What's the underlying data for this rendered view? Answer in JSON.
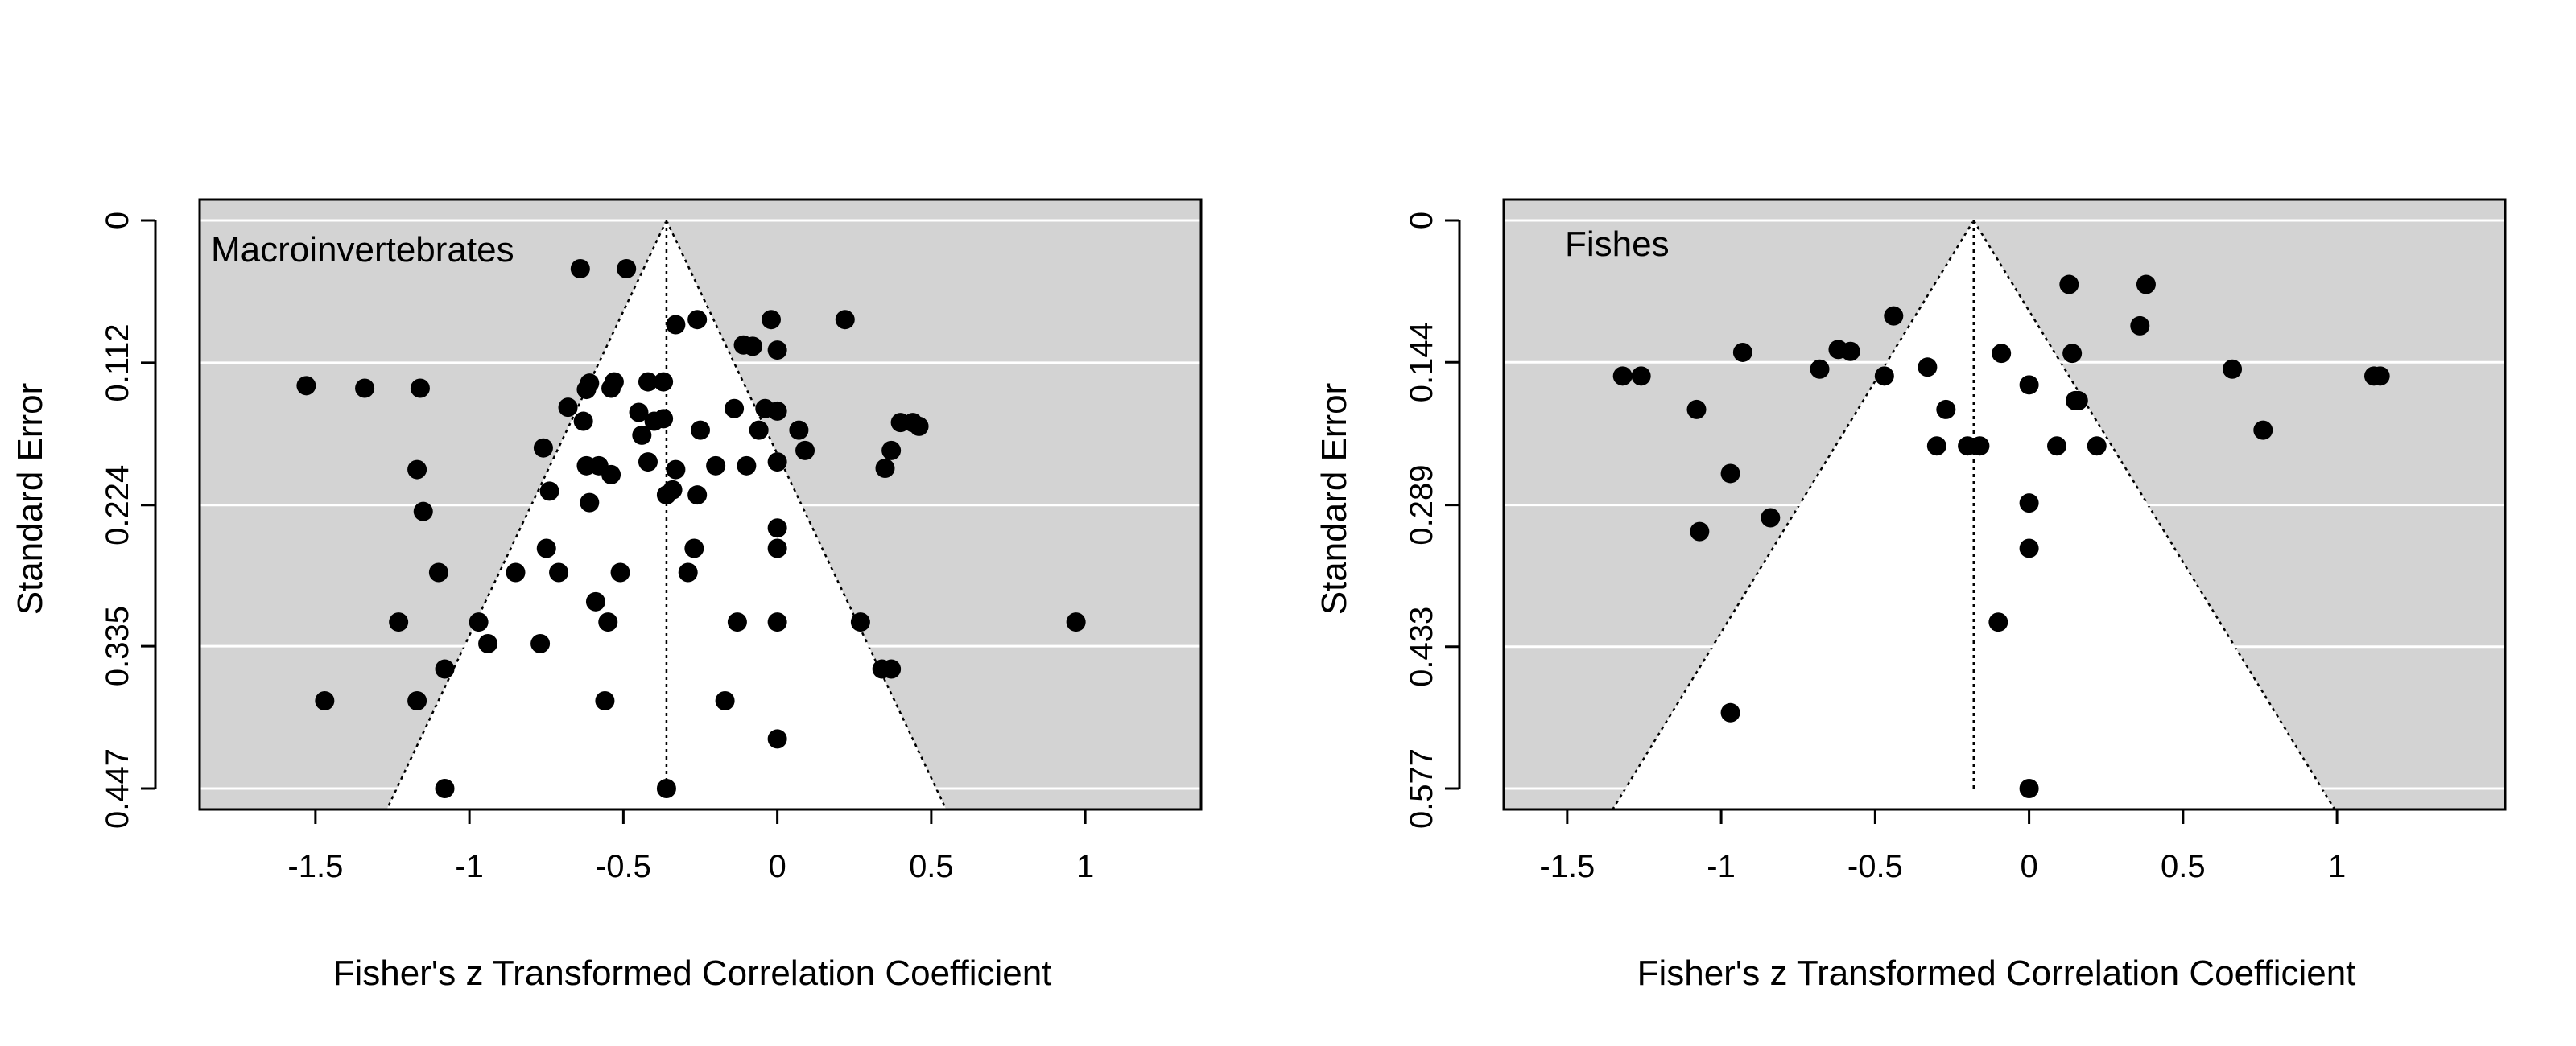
{
  "chart_data": [
    {
      "type": "scatter",
      "subtype": "funnel-plot",
      "panel_label": "Macroinvertebrates",
      "xlabel": "Fisher's z Transformed Correlation Coefficient",
      "ylabel": "Standard Error",
      "xlim": [
        -1.85,
        1.35
      ],
      "ylim": [
        0.447,
        0.0
      ],
      "y_axis_inverted": true,
      "x_ticks": [
        -1.5,
        -1,
        -0.5,
        0,
        0.5,
        1
      ],
      "x_tick_labels": [
        "-1.5",
        "-1",
        "-0.5",
        "0",
        "0.5",
        "1"
      ],
      "y_ticks": [
        0,
        0.112,
        0.224,
        0.335,
        0.447
      ],
      "y_tick_labels": [
        "0",
        "0.112",
        "0.224",
        "0.335",
        "0.447"
      ],
      "grid": "horizontal, white",
      "background_color": "#d3d3d3",
      "funnel_color": "#ffffff",
      "pooled_estimate": -0.36,
      "colors": {
        "points": "#000000",
        "funnel_lines": "#000000"
      },
      "points": [
        {
          "x": -0.64,
          "y": 0.038
        },
        {
          "x": -0.49,
          "y": 0.038
        },
        {
          "x": -0.02,
          "y": 0.078
        },
        {
          "x": 0.22,
          "y": 0.078
        },
        {
          "x": -0.26,
          "y": 0.078
        },
        {
          "x": -0.33,
          "y": 0.082
        },
        {
          "x": -0.11,
          "y": 0.098
        },
        {
          "x": -0.08,
          "y": 0.099
        },
        {
          "x": 0.0,
          "y": 0.102
        },
        {
          "x": -1.53,
          "y": 0.13
        },
        {
          "x": -1.34,
          "y": 0.132
        },
        {
          "x": -1.16,
          "y": 0.132
        },
        {
          "x": -0.61,
          "y": 0.128
        },
        {
          "x": -0.53,
          "y": 0.127
        },
        {
          "x": -0.42,
          "y": 0.127
        },
        {
          "x": -0.37,
          "y": 0.127
        },
        {
          "x": -0.62,
          "y": 0.133
        },
        {
          "x": -0.54,
          "y": 0.132
        },
        {
          "x": -0.68,
          "y": 0.147
        },
        {
          "x": -0.63,
          "y": 0.158
        },
        {
          "x": -0.45,
          "y": 0.151
        },
        {
          "x": -0.4,
          "y": 0.158
        },
        {
          "x": -0.37,
          "y": 0.156
        },
        {
          "x": -0.14,
          "y": 0.148
        },
        {
          "x": -0.04,
          "y": 0.148
        },
        {
          "x": 0.0,
          "y": 0.15
        },
        {
          "x": -0.44,
          "y": 0.169
        },
        {
          "x": -0.25,
          "y": 0.165
        },
        {
          "x": -0.06,
          "y": 0.165
        },
        {
          "x": 0.07,
          "y": 0.165
        },
        {
          "x": 0.4,
          "y": 0.159
        },
        {
          "x": 0.44,
          "y": 0.159
        },
        {
          "x": 0.46,
          "y": 0.162
        },
        {
          "x": -0.76,
          "y": 0.179
        },
        {
          "x": 0.09,
          "y": 0.181
        },
        {
          "x": 0.37,
          "y": 0.181
        },
        {
          "x": -1.17,
          "y": 0.196
        },
        {
          "x": -0.62,
          "y": 0.193
        },
        {
          "x": -0.58,
          "y": 0.193
        },
        {
          "x": -0.42,
          "y": 0.19
        },
        {
          "x": -0.33,
          "y": 0.196
        },
        {
          "x": -0.2,
          "y": 0.193
        },
        {
          "x": -0.1,
          "y": 0.193
        },
        {
          "x": 0.0,
          "y": 0.19
        },
        {
          "x": 0.35,
          "y": 0.195
        },
        {
          "x": -0.54,
          "y": 0.2
        },
        {
          "x": -0.74,
          "y": 0.213
        },
        {
          "x": -0.34,
          "y": 0.212
        },
        {
          "x": -0.36,
          "y": 0.216
        },
        {
          "x": -0.26,
          "y": 0.216
        },
        {
          "x": -0.61,
          "y": 0.222
        },
        {
          "x": -1.15,
          "y": 0.229
        },
        {
          "x": 0.0,
          "y": 0.242
        },
        {
          "x": -0.75,
          "y": 0.258
        },
        {
          "x": -0.27,
          "y": 0.258
        },
        {
          "x": 0.0,
          "y": 0.258
        },
        {
          "x": -1.1,
          "y": 0.277
        },
        {
          "x": -0.85,
          "y": 0.277
        },
        {
          "x": -0.71,
          "y": 0.277
        },
        {
          "x": -0.51,
          "y": 0.277
        },
        {
          "x": -0.29,
          "y": 0.277
        },
        {
          "x": -0.59,
          "y": 0.3
        },
        {
          "x": -1.23,
          "y": 0.316
        },
        {
          "x": -0.97,
          "y": 0.316
        },
        {
          "x": -0.55,
          "y": 0.316
        },
        {
          "x": -0.13,
          "y": 0.316
        },
        {
          "x": 0.0,
          "y": 0.316
        },
        {
          "x": 0.27,
          "y": 0.316
        },
        {
          "x": 0.97,
          "y": 0.316
        },
        {
          "x": -0.94,
          "y": 0.333
        },
        {
          "x": -0.77,
          "y": 0.333
        },
        {
          "x": -1.08,
          "y": 0.353
        },
        {
          "x": 0.34,
          "y": 0.353
        },
        {
          "x": 0.37,
          "y": 0.353
        },
        {
          "x": -1.47,
          "y": 0.378
        },
        {
          "x": -1.17,
          "y": 0.378
        },
        {
          "x": -0.56,
          "y": 0.378
        },
        {
          "x": -0.17,
          "y": 0.378
        },
        {
          "x": 0.0,
          "y": 0.408
        },
        {
          "x": -1.08,
          "y": 0.447
        },
        {
          "x": -0.36,
          "y": 0.447
        }
      ]
    },
    {
      "type": "scatter",
      "subtype": "funnel-plot",
      "panel_label": "Fishes",
      "xlabel": "Fisher's z Transformed Correlation Coefficient",
      "ylabel": "Standard Error",
      "xlim": [
        -1.68,
        1.52
      ],
      "ylim": [
        0.577,
        0.0
      ],
      "y_axis_inverted": true,
      "x_ticks": [
        -1.5,
        -1,
        -0.5,
        0,
        0.5,
        1
      ],
      "x_tick_labels": [
        "-1.5",
        "-1",
        "-0.5",
        "0",
        "0.5",
        "1"
      ],
      "y_ticks": [
        0,
        0.144,
        0.289,
        0.433,
        0.577
      ],
      "y_tick_labels": [
        "0",
        "0.144",
        "0.289",
        "0.433",
        "0.577"
      ],
      "grid": "horizontal, white",
      "background_color": "#d3d3d3",
      "funnel_color": "#ffffff",
      "pooled_estimate": -0.18,
      "colors": {
        "points": "#000000",
        "funnel_lines": "#000000"
      },
      "points": [
        {
          "x": 0.13,
          "y": 0.065
        },
        {
          "x": 0.38,
          "y": 0.065
        },
        {
          "x": -0.44,
          "y": 0.097
        },
        {
          "x": 0.36,
          "y": 0.107
        },
        {
          "x": -0.93,
          "y": 0.134
        },
        {
          "x": -0.62,
          "y": 0.131
        },
        {
          "x": -0.58,
          "y": 0.133
        },
        {
          "x": -0.09,
          "y": 0.135
        },
        {
          "x": 0.14,
          "y": 0.135
        },
        {
          "x": -1.32,
          "y": 0.158
        },
        {
          "x": -1.26,
          "y": 0.158
        },
        {
          "x": -0.68,
          "y": 0.151
        },
        {
          "x": -0.47,
          "y": 0.158
        },
        {
          "x": -0.33,
          "y": 0.149
        },
        {
          "x": 0.0,
          "y": 0.167
        },
        {
          "x": 0.66,
          "y": 0.151
        },
        {
          "x": 1.12,
          "y": 0.158
        },
        {
          "x": 1.14,
          "y": 0.158
        },
        {
          "x": -1.08,
          "y": 0.192
        },
        {
          "x": -0.27,
          "y": 0.192
        },
        {
          "x": 0.15,
          "y": 0.183
        },
        {
          "x": 0.16,
          "y": 0.183
        },
        {
          "x": 0.76,
          "y": 0.213
        },
        {
          "x": -0.3,
          "y": 0.229
        },
        {
          "x": -0.2,
          "y": 0.229
        },
        {
          "x": -0.16,
          "y": 0.229
        },
        {
          "x": 0.09,
          "y": 0.229
        },
        {
          "x": 0.22,
          "y": 0.229
        },
        {
          "x": -0.97,
          "y": 0.257
        },
        {
          "x": 0.0,
          "y": 0.287
        },
        {
          "x": -0.84,
          "y": 0.302
        },
        {
          "x": -1.07,
          "y": 0.316
        },
        {
          "x": 0.0,
          "y": 0.333
        },
        {
          "x": -0.1,
          "y": 0.408
        },
        {
          "x": -0.97,
          "y": 0.5
        },
        {
          "x": 0.0,
          "y": 0.577
        }
      ]
    }
  ]
}
